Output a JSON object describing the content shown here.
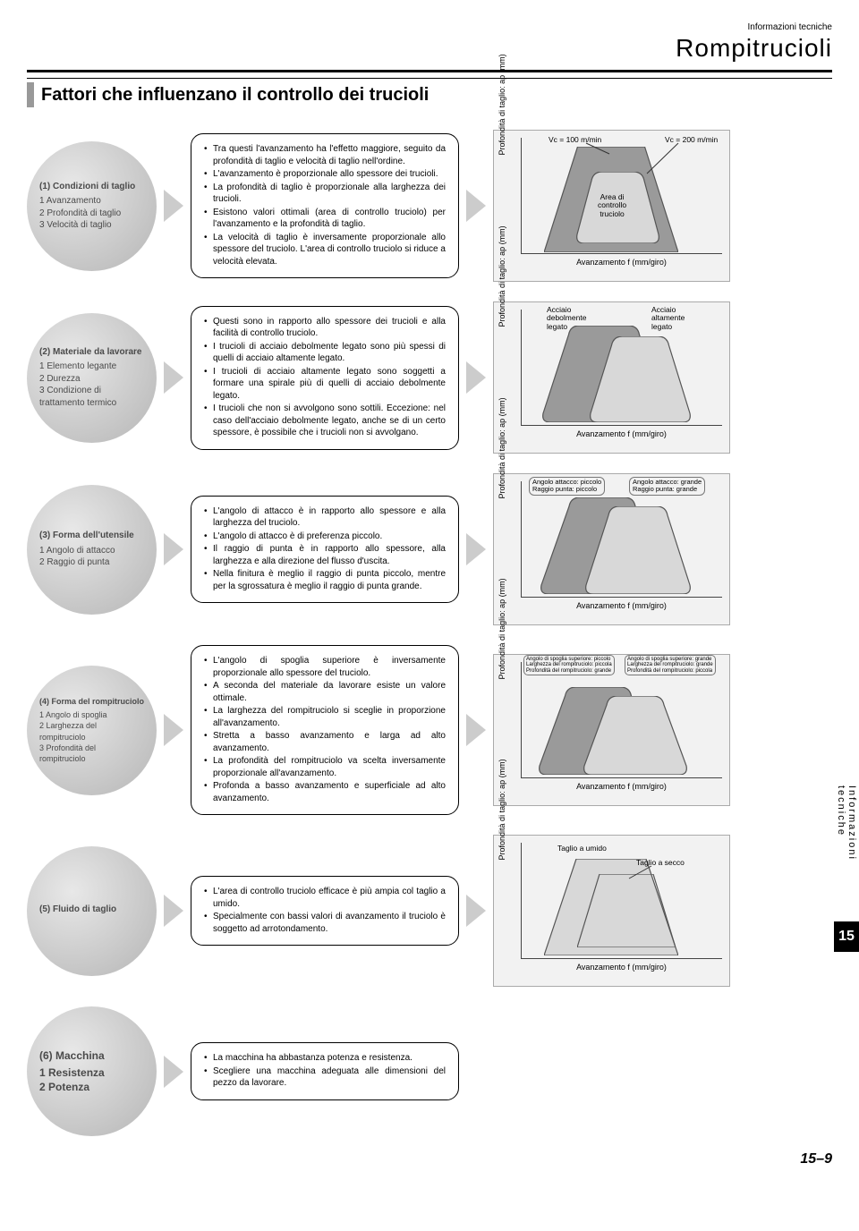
{
  "header": {
    "tag": "Informazioni tecniche",
    "big": "Rompitrucioli",
    "title": "Fattori che influenzano il controllo dei trucioli"
  },
  "rows": [
    {
      "circle_head": "(1) Condizioni di taglio",
      "circle_lines": [
        "1 Avanzamento",
        "2 Profondità di taglio",
        "3 Velocità di taglio"
      ],
      "bullets": [
        "Tra questi l'avanzamento ha l'effetto maggiore, seguito da profondità di taglio e velocità di taglio nell'ordine.",
        "L'avanzamento è proporzionale allo spessore dei trucioli.",
        "La profondità di taglio è proporzionale alla larghezza dei trucioli.",
        "Esistono valori ottimali (area di controllo truciolo) per l'avanzamento e la profondità di taglio.",
        "La velocità di taglio è inversamente proporzionale allo spessore del truciolo. L'area di controllo truciolo si riduce a velocità elevata."
      ],
      "chart": {
        "y": "Profondità di taglio: ap (mm)",
        "x": "Avanzamento f (mm/giro)",
        "l1": "Vc = 100 m/min",
        "l2": "Vc = 200 m/min",
        "center": "Area di\ncontrollo\ntruciolo"
      }
    },
    {
      "circle_head": "(2) Materiale da lavorare",
      "circle_lines": [
        "1 Elemento legante",
        "2 Durezza",
        "3 Condizione di",
        "   trattamento termico"
      ],
      "bullets": [
        "Questi sono in rapporto allo spessore dei trucioli e alla facilità di controllo truciolo.",
        "I trucioli di acciaio debolmente legato sono più spessi di quelli di acciaio altamente legato.",
        "I trucioli di acciaio altamente legato sono soggetti a formare una spirale più di quelli di acciaio debolmente legato.",
        "I trucioli che non si avvolgono sono sottili. Eccezione: nel caso dell'acciaio debolmente legato, anche se di un certo spessore, è possibile che i trucioli non si avvolgano."
      ],
      "chart": {
        "y": "Profondità di taglio: ap (mm)",
        "x": "Avanzamento f (mm/giro)",
        "l1": "Acciaio\ndebolmente\nlegato",
        "l2": "Acciaio\naltamente\nlegato"
      }
    },
    {
      "circle_head": "(3) Forma dell'utensile",
      "circle_lines": [
        "1 Angolo di attacco",
        "2 Raggio di punta"
      ],
      "bullets": [
        "L'angolo di attacco è in rapporto allo spessore e alla larghezza del truciolo.",
        "L'angolo di attacco è di preferenza piccolo.",
        "Il raggio di punta è in rapporto allo spessore, alla larghezza e alla direzione del flusso d'uscita.",
        "Nella finitura è meglio il raggio di punta piccolo, mentre per la sgrossatura è meglio il raggio di punta grande."
      ],
      "chart": {
        "y": "Profondità di taglio: ap (mm)",
        "x": "Avanzamento f (mm/giro)",
        "l1": "Angolo attacco: piccolo\nRaggio punta: piccolo",
        "l2": "Angolo attacco: grande\nRaggio punta: grande"
      }
    },
    {
      "circle_head": "(4) Forma del rompitruciolo",
      "circle_lines": [
        "1 Angolo di spoglia",
        "2 Larghezza del rompitruciolo",
        "3 Profondità del  rompitruciolo"
      ],
      "circle_size": "small",
      "bullets": [
        "L'angolo di spoglia superiore è inversamente proporzionale allo spessore del truciolo.",
        "A seconda del materiale da lavorare esiste un valore ottimale.",
        "La larghezza del rompitruciolo si sceglie in proporzione all'avanzamento.",
        "Stretta a basso avanzamento e larga ad alto avanzamento.",
        "La profondità del rompitruciolo va scelta inversamente proporzionale all'avanzamento.",
        "Profonda a basso avanzamento e superficiale ad alto avanzamento."
      ],
      "chart": {
        "y": "Profondità di taglio: ap (mm)",
        "x": "Avanzamento f (mm/giro)",
        "l1": "Angolo di spoglia superiore: piccolo\nLarghezza del rompitruciolo: piccola\nProfondità del rompitruciolo: grande",
        "l2": "Angolo di spoglia superiore: grande\nLarghezza del rompitruciolo: grande\nProfondità del rompitruciolo: piccola",
        "small_labels": true
      }
    },
    {
      "circle_head": "(5) Fluido di taglio",
      "circle_lines": [],
      "bullets": [
        "L'area di controllo truciolo efficace è più ampia col taglio a umido.",
        "Specialmente con bassi valori di avanzamento il truciolo è soggetto ad arrotondamento."
      ],
      "chart": {
        "y": "Profondità di taglio: ap (mm)",
        "x": "Avanzamento f (mm/giro)",
        "l1": "Taglio a umido",
        "l2": "Taglio a secco"
      }
    },
    {
      "circle_head": "(6) Macchina",
      "circle_lines": [
        "1 Resistenza",
        "2 Potenza"
      ],
      "circle_size": "big",
      "bullets": [
        "La macchina ha abbastanza potenza e resistenza.",
        "Scegliere una macchina adeguata alle dimensioni del pezzo da lavorare."
      ],
      "chart": null
    }
  ],
  "side": {
    "text": "Informazioni tecniche",
    "num": "15"
  },
  "footer": "15–9",
  "colors": {
    "light": "#d8d8d8",
    "mid": "#9a9a9a",
    "dark": "#7a7a7a",
    "stroke": "#555"
  }
}
